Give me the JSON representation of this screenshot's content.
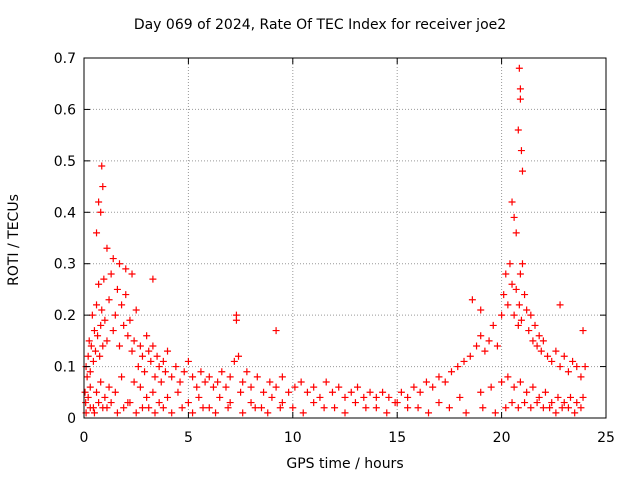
{
  "chart_data": {
    "type": "scatter",
    "title": "Day 069 of 2024, Rate Of TEC Index for receiver joe2",
    "xlabel": "GPS time / hours",
    "ylabel": "ROTI / TECUs",
    "xlim": [
      0,
      25
    ],
    "ylim": [
      0,
      0.7
    ],
    "xticks": [
      "0",
      "5",
      "10",
      "15",
      "20",
      "25"
    ],
    "yticks": [
      "0",
      "0.1",
      "0.2",
      "0.3",
      "0.4",
      "0.5",
      "0.6",
      "0.7"
    ],
    "grid": true,
    "marker": "+",
    "series": [
      {
        "name": "ROTI",
        "color": "#ff0000",
        "x": [
          0.05,
          0.1,
          0.15,
          0.2,
          0.25,
          0.3,
          0.35,
          0.4,
          0.45,
          0.5,
          0.55,
          0.6,
          0.65,
          0.7,
          0.75,
          0.8,
          0.85,
          0.9,
          0.95,
          1.0,
          1.1,
          1.2,
          1.3,
          1.4,
          1.5,
          1.6,
          1.7,
          1.8,
          1.9,
          2.0,
          2.1,
          2.2,
          2.3,
          2.4,
          2.5,
          2.6,
          2.7,
          2.8,
          2.9,
          3.0,
          3.1,
          3.2,
          3.3,
          3.4,
          3.5,
          3.6,
          3.7,
          3.8,
          3.9,
          4.0,
          4.2,
          4.4,
          4.6,
          4.8,
          5.0,
          5.2,
          5.4,
          5.6,
          5.8,
          6.0,
          6.2,
          6.4,
          6.6,
          6.8,
          7.0,
          7.2,
          7.3,
          7.4,
          7.6,
          7.8,
          8.0,
          8.3,
          8.6,
          8.9,
          9.2,
          9.5,
          9.8,
          10.1,
          10.4,
          10.7,
          11.0,
          11.3,
          11.6,
          11.9,
          12.2,
          12.5,
          12.8,
          13.1,
          13.4,
          13.7,
          14.0,
          14.3,
          14.6,
          14.9,
          15.2,
          15.5,
          15.8,
          16.1,
          16.4,
          16.7,
          17.0,
          17.3,
          17.6,
          17.9,
          18.2,
          18.5,
          18.8,
          19.0,
          19.2,
          19.4,
          19.6,
          19.8,
          20.0,
          20.1,
          20.2,
          20.3,
          20.4,
          20.5,
          20.6,
          20.7,
          20.8,
          20.85,
          20.9,
          20.95,
          21.0,
          21.1,
          21.2,
          21.3,
          21.4,
          21.5,
          21.6,
          21.7,
          21.8,
          21.9,
          22.0,
          22.2,
          22.4,
          22.6,
          22.8,
          23.0,
          23.2,
          23.4,
          23.6,
          23.8,
          24.0,
          0.08,
          0.2,
          0.3,
          0.45,
          0.6,
          0.8,
          1.0,
          1.2,
          1.5,
          1.8,
          2.1,
          2.4,
          2.7,
          3.0,
          3.3,
          3.6,
          4.0,
          4.5,
          5.0,
          5.5,
          6.0,
          6.5,
          7.0,
          7.5,
          8.0,
          8.5,
          9.0,
          9.5,
          10.0,
          11.0,
          12.0,
          13.0,
          14.0,
          15.0,
          16.0,
          17.0,
          18.0,
          19.0,
          19.5,
          20.0,
          20.3,
          20.6,
          20.9,
          21.2,
          21.5,
          21.8,
          22.1,
          22.4,
          22.7,
          23.0,
          23.3,
          23.6,
          23.9,
          0.1,
          0.3,
          0.5,
          0.7,
          0.9,
          1.1,
          1.3,
          1.6,
          1.9,
          2.2,
          2.5,
          2.8,
          3.1,
          3.4,
          3.8,
          4.2,
          4.7,
          5.2,
          5.7,
          6.3,
          6.9,
          7.6,
          8.2,
          8.8,
          9.4,
          10.5,
          11.5,
          12.5,
          13.5,
          14.5,
          15.5,
          16.5,
          17.5,
          18.3,
          19.1,
          19.7,
          20.2,
          20.5,
          20.8,
          21.1,
          21.4,
          21.7,
          22.0,
          22.3,
          22.6,
          22.9,
          23.2,
          23.5,
          23.8,
          0.6,
          0.7,
          0.8,
          0.85,
          0.9,
          1.1,
          1.4,
          1.7,
          2.0,
          2.3,
          3.3,
          7.3,
          9.2,
          20.8,
          20.85,
          20.9,
          20.9,
          20.95,
          21.0,
          20.5,
          20.6,
          20.7,
          18.6,
          19.0,
          22.8,
          23.9
        ],
        "y": [
          0.05,
          0.1,
          0.08,
          0.12,
          0.15,
          0.09,
          0.14,
          0.2,
          0.11,
          0.17,
          0.13,
          0.22,
          0.16,
          0.26,
          0.12,
          0.18,
          0.21,
          0.14,
          0.27,
          0.19,
          0.15,
          0.23,
          0.28,
          0.17,
          0.2,
          0.25,
          0.14,
          0.22,
          0.18,
          0.24,
          0.16,
          0.19,
          0.13,
          0.15,
          0.21,
          0.1,
          0.14,
          0.12,
          0.09,
          0.16,
          0.13,
          0.11,
          0.14,
          0.08,
          0.12,
          0.1,
          0.07,
          0.11,
          0.09,
          0.13,
          0.08,
          0.1,
          0.07,
          0.09,
          0.11,
          0.08,
          0.06,
          0.09,
          0.07,
          0.08,
          0.06,
          0.07,
          0.09,
          0.06,
          0.08,
          0.11,
          0.19,
          0.12,
          0.07,
          0.09,
          0.06,
          0.08,
          0.05,
          0.07,
          0.06,
          0.08,
          0.05,
          0.06,
          0.07,
          0.05,
          0.06,
          0.04,
          0.07,
          0.05,
          0.06,
          0.04,
          0.05,
          0.06,
          0.04,
          0.05,
          0.04,
          0.05,
          0.04,
          0.03,
          0.05,
          0.04,
          0.06,
          0.05,
          0.07,
          0.06,
          0.08,
          0.07,
          0.09,
          0.1,
          0.11,
          0.12,
          0.14,
          0.16,
          0.13,
          0.15,
          0.18,
          0.14,
          0.2,
          0.24,
          0.28,
          0.22,
          0.3,
          0.26,
          0.2,
          0.25,
          0.18,
          0.22,
          0.28,
          0.19,
          0.3,
          0.24,
          0.21,
          0.17,
          0.2,
          0.15,
          0.18,
          0.14,
          0.16,
          0.13,
          0.15,
          0.12,
          0.11,
          0.13,
          0.1,
          0.12,
          0.09,
          0.11,
          0.1,
          0.08,
          0.1,
          0.03,
          0.04,
          0.06,
          0.02,
          0.05,
          0.07,
          0.04,
          0.06,
          0.05,
          0.08,
          0.03,
          0.07,
          0.06,
          0.04,
          0.05,
          0.03,
          0.04,
          0.05,
          0.03,
          0.04,
          0.02,
          0.04,
          0.03,
          0.05,
          0.03,
          0.02,
          0.04,
          0.03,
          0.02,
          0.03,
          0.02,
          0.03,
          0.02,
          0.03,
          0.02,
          0.03,
          0.04,
          0.05,
          0.06,
          0.07,
          0.08,
          0.06,
          0.07,
          0.05,
          0.06,
          0.04,
          0.05,
          0.03,
          0.04,
          0.03,
          0.04,
          0.03,
          0.04,
          0.01,
          0.02,
          0.01,
          0.03,
          0.02,
          0.02,
          0.03,
          0.01,
          0.02,
          0.03,
          0.01,
          0.02,
          0.02,
          0.01,
          0.02,
          0.01,
          0.02,
          0.01,
          0.02,
          0.01,
          0.02,
          0.01,
          0.02,
          0.01,
          0.02,
          0.01,
          0.02,
          0.01,
          0.02,
          0.01,
          0.02,
          0.01,
          0.02,
          0.01,
          0.02,
          0.01,
          0.02,
          0.03,
          0.02,
          0.03,
          0.02,
          0.03,
          0.02,
          0.02,
          0.01,
          0.02,
          0.02,
          0.01,
          0.02,
          0.36,
          0.42,
          0.4,
          0.49,
          0.45,
          0.33,
          0.31,
          0.3,
          0.29,
          0.28,
          0.27,
          0.2,
          0.17,
          0.56,
          0.68,
          0.64,
          0.62,
          0.52,
          0.48,
          0.42,
          0.39,
          0.36,
          0.23,
          0.21,
          0.22,
          0.17
        ]
      }
    ]
  }
}
